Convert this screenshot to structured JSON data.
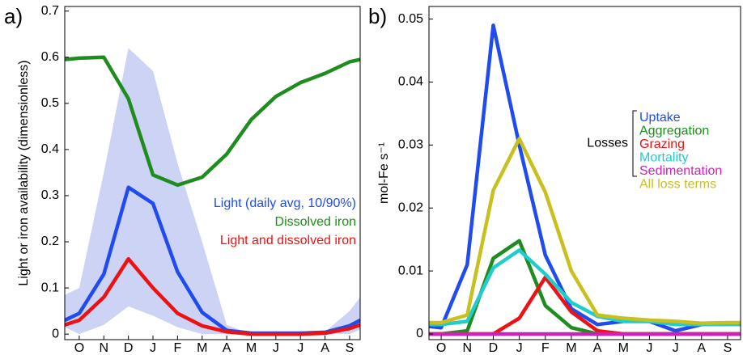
{
  "chart_data": [
    {
      "type": "line",
      "panel_label": "a)",
      "y_label": "Light or iron availability (dimensionless)",
      "x": [
        0.41,
        1,
        2,
        3,
        4,
        5,
        6,
        7,
        8,
        9,
        10,
        11,
        12,
        12.43
      ],
      "xlim": [
        0.41,
        12.43
      ],
      "xticks": [
        {
          "value": 1,
          "label": "O"
        },
        {
          "value": 2,
          "label": "N"
        },
        {
          "value": 3,
          "label": "D"
        },
        {
          "value": 4,
          "label": "J"
        },
        {
          "value": 5,
          "label": "F"
        },
        {
          "value": 6,
          "label": "M"
        },
        {
          "value": 7,
          "label": "A"
        },
        {
          "value": 8,
          "label": "M"
        },
        {
          "value": 9,
          "label": "J"
        },
        {
          "value": 10,
          "label": "J"
        },
        {
          "value": 11,
          "label": "A"
        },
        {
          "value": 12,
          "label": "S"
        }
      ],
      "ylim": [
        -0.012,
        0.71
      ],
      "yticks": [
        0,
        0.1,
        0.2,
        0.3,
        0.4,
        0.5,
        0.6,
        0.7
      ],
      "band": {
        "color": "#ccd3f5",
        "upper": [
          0.085,
          0.1,
          0.35,
          0.62,
          0.57,
          0.37,
          0.2,
          0.02,
          0,
          0,
          0,
          0.005,
          0.05,
          0.08
        ],
        "lower": [
          0.015,
          0,
          0.02,
          0.06,
          0.04,
          0.015,
          0,
          0,
          0,
          0,
          0,
          0,
          0,
          0.01
        ]
      },
      "series": [
        {
          "name": "Light (daily avg, 10/90%)",
          "color": "#1f4bef",
          "values": [
            0.03,
            0.045,
            0.13,
            0.318,
            0.283,
            0.135,
            0.047,
            0.008,
            0.002,
            0.002,
            0.002,
            0.004,
            0.018,
            0.03
          ]
        },
        {
          "name": "Dissolved iron",
          "color": "#1e8c1e",
          "values": [
            0.595,
            0.598,
            0.6,
            0.51,
            0.345,
            0.323,
            0.34,
            0.39,
            0.465,
            0.515,
            0.545,
            0.565,
            0.59,
            0.595
          ]
        },
        {
          "name": "Light and dissolved iron",
          "color": "#ee1111",
          "values": [
            0.02,
            0.03,
            0.08,
            0.163,
            0.1,
            0.045,
            0.018,
            0.005,
            0,
            0,
            0,
            0.002,
            0.012,
            0.02
          ]
        }
      ]
    },
    {
      "type": "line",
      "panel_label": "b)",
      "y_label": "mol-Fe s⁻¹",
      "group_label": "Losses",
      "x": [
        0.53,
        1,
        2,
        3,
        4,
        5,
        6,
        7,
        8,
        9,
        10,
        11,
        12,
        12.5
      ],
      "xlim": [
        0.53,
        12.5
      ],
      "xticks": [
        {
          "value": 1,
          "label": "O"
        },
        {
          "value": 2,
          "label": "N"
        },
        {
          "value": 3,
          "label": "D"
        },
        {
          "value": 4,
          "label": "J"
        },
        {
          "value": 5,
          "label": "F"
        },
        {
          "value": 6,
          "label": "M"
        },
        {
          "value": 7,
          "label": "A"
        },
        {
          "value": 8,
          "label": "M"
        },
        {
          "value": 9,
          "label": "J"
        },
        {
          "value": 10,
          "label": "J"
        },
        {
          "value": 11,
          "label": "A"
        },
        {
          "value": 12,
          "label": "S"
        }
      ],
      "ylim": [
        -0.0009,
        0.052
      ],
      "yticks": [
        0,
        0.01,
        0.02,
        0.03,
        0.04,
        0.05
      ],
      "series": [
        {
          "name": "Uptake",
          "color": "#1f4bef",
          "values": [
            0.0012,
            0.001,
            0.011,
            0.049,
            0.03,
            0.0125,
            0.004,
            0.0015,
            0.002,
            0.002,
            0.0005,
            0.0015,
            0.0015,
            0.0015
          ]
        },
        {
          "name": "Aggregation",
          "color": "#1e8c1e",
          "values": [
            0,
            0,
            0.0005,
            0.012,
            0.0148,
            0.0045,
            0.001,
            0,
            0,
            0,
            0,
            0,
            0,
            0
          ]
        },
        {
          "name": "Grazing",
          "color": "#ee1111",
          "values": [
            0,
            0,
            0,
            0,
            0.0025,
            0.009,
            0.0035,
            0.0005,
            0,
            0,
            0,
            0,
            0,
            0
          ]
        },
        {
          "name": "Mortality",
          "color": "#22cccc",
          "values": [
            0.0015,
            0.0015,
            0.002,
            0.0105,
            0.0133,
            0.0095,
            0.005,
            0.0028,
            0.002,
            0.002,
            0.0015,
            0.0015,
            0.0015,
            0.0015
          ]
        },
        {
          "name": "Sedimentation",
          "color": "#cc22bb",
          "values": [
            0,
            0,
            0,
            0,
            0,
            0,
            0,
            0,
            0,
            0,
            0,
            0,
            0,
            0
          ]
        },
        {
          "name": "All loss terms",
          "color": "#c8c01e",
          "values": [
            0.0018,
            0.0018,
            0.003,
            0.0228,
            0.031,
            0.0225,
            0.01,
            0.003,
            0.0025,
            0.0022,
            0.002,
            0.0017,
            0.0018,
            0.0018
          ]
        }
      ]
    }
  ]
}
